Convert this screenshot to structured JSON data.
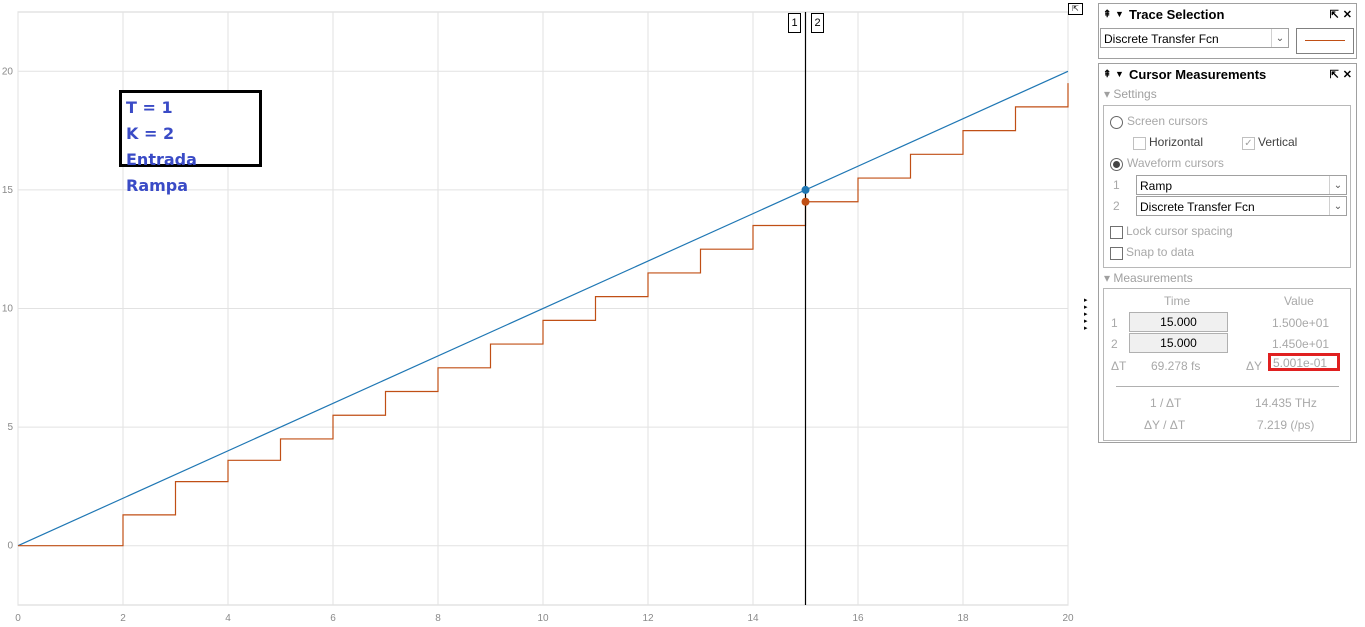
{
  "plot": {
    "x_ticks": [
      "0",
      "2",
      "4",
      "6",
      "8",
      "10",
      "12",
      "14",
      "16",
      "18",
      "20"
    ],
    "y_ticks": [
      "0",
      "5",
      "10",
      "15",
      "20"
    ],
    "xlim": [
      0,
      20
    ],
    "ylim": [
      -2.5,
      22.5
    ],
    "cursor_tag_1": "1",
    "cursor_tag_2": "2",
    "cursor_time": 15,
    "ramp_color": "#1f77b4",
    "discrete_color": "#c04f15",
    "grid": true
  },
  "annotation": {
    "line1": "T = 1",
    "line2": "K = 2",
    "line3": "Entrada Rampa"
  },
  "trace_selection": {
    "title": "Trace Selection",
    "selected_trace": "Discrete Transfer Fcn"
  },
  "cursor_measurements": {
    "title": "Cursor Measurements",
    "settings_label": "Settings",
    "screen_cursors": "Screen cursors",
    "horizontal": "Horizontal",
    "vertical": "Vertical",
    "waveform_cursors": "Waveform cursors",
    "cursor1_num": "1",
    "cursor2_num": "2",
    "cursor1_signal": "Ramp",
    "cursor2_signal": "Discrete Transfer Fcn",
    "lock_spacing": "Lock cursor spacing",
    "snap_to_data": "Snap to data",
    "measurements_label": "Measurements",
    "col_time": "Time",
    "col_value": "Value",
    "row1_time": "15.000",
    "row1_value": "1.500e+01",
    "row2_time": "15.000",
    "row2_value": "1.450e+01",
    "delta_t_label": "ΔT",
    "delta_t_value": "69.278 fs",
    "delta_y_label": "ΔY",
    "delta_y_value": "5.001e-01",
    "inv_dt_label": "1 / ΔT",
    "inv_dt_value": "14.435 THz",
    "dy_dt_label": "ΔY / ΔT",
    "dy_dt_value": "7.219 (/ps)"
  },
  "chart_data": {
    "type": "line",
    "xlim": [
      0,
      20
    ],
    "ylim": [
      -2.5,
      22.5
    ],
    "grid": true,
    "series": [
      {
        "name": "Ramp",
        "x": [
          0,
          20
        ],
        "y": [
          0,
          20
        ],
        "color": "#1f77b4"
      },
      {
        "name": "Discrete Transfer Fcn",
        "step": true,
        "x": [
          0,
          2,
          3,
          4,
          5,
          6,
          7,
          8,
          9,
          10,
          11,
          12,
          13,
          14,
          15,
          16,
          17,
          18,
          19,
          20
        ],
        "y": [
          0,
          1.3,
          2.7,
          3.6,
          4.5,
          5.5,
          6.5,
          7.5,
          8.5,
          9.5,
          10.5,
          11.5,
          12.5,
          13.5,
          14.5,
          15.5,
          16.5,
          17.5,
          18.5,
          19.5
        ],
        "color": "#c04f15"
      }
    ]
  }
}
